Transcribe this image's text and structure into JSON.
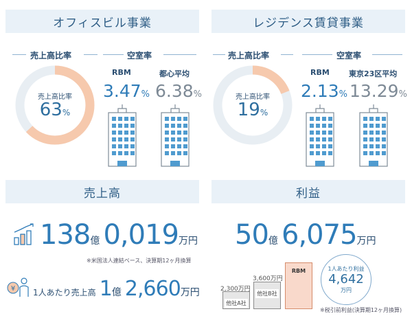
{
  "office": {
    "title": "オフィスビル事業",
    "sales_ratio_label": "売上高比率",
    "vacancy_label": "空室率",
    "donut_caption": "売上高比率",
    "donut_value": "63",
    "donut_unit": "%",
    "donut_fraction": 0.63,
    "rbm_name": "RBM",
    "rbm_value": "3.47",
    "rbm_unit": "%",
    "avg_name": "都心平均",
    "avg_value": "6.38",
    "avg_unit": "%"
  },
  "residence": {
    "title": "レジデンス賃貸事業",
    "sales_ratio_label": "売上高比率",
    "vacancy_label": "空室率",
    "donut_caption": "売上高比率",
    "donut_value": "19",
    "donut_unit": "%",
    "donut_fraction": 0.19,
    "rbm_name": "RBM",
    "rbm_value": "2.13",
    "rbm_unit": "%",
    "avg_name": "東京23区平均",
    "avg_value": "13.29",
    "avg_unit": "%"
  },
  "sales": {
    "title": "売上高",
    "value_oku": "138",
    "oku_unit": "億",
    "value_rest": "0,019",
    "rest_unit": "万円",
    "note": "※米国法人連結ベース、決算期12ヶ月換算",
    "per_person_label": "1人あたり売上高",
    "per_person_oku": "1",
    "per_person_oku_unit": "億",
    "per_person_rest": "2,660",
    "per_person_unit": "万円",
    "coin_symbol": "¥"
  },
  "profit": {
    "title": "利益",
    "value_oku": "50",
    "oku_unit": "億",
    "value_rest": "6,075",
    "rest_unit": "万円",
    "bars": [
      {
        "label": "他社A社",
        "value_text": "2,300万円"
      },
      {
        "label": "他社B社",
        "value_text": "3,600万円"
      },
      {
        "label": "RBM",
        "value_text": ""
      }
    ],
    "bubble_label": "1人あたり利益",
    "bubble_value": "4,642",
    "bubble_unit": "万円",
    "note": "※税引前利益(決算期12ヶ月換算)"
  },
  "colors": {
    "header_bg": "#e9f1f8",
    "donut_fill": "#f6c9ad",
    "donut_track": "#e8eef3",
    "building_blue": "#4f9bcf",
    "rbm_bar": "#f9d9cb",
    "other_bar": "#e6e6e6"
  }
}
